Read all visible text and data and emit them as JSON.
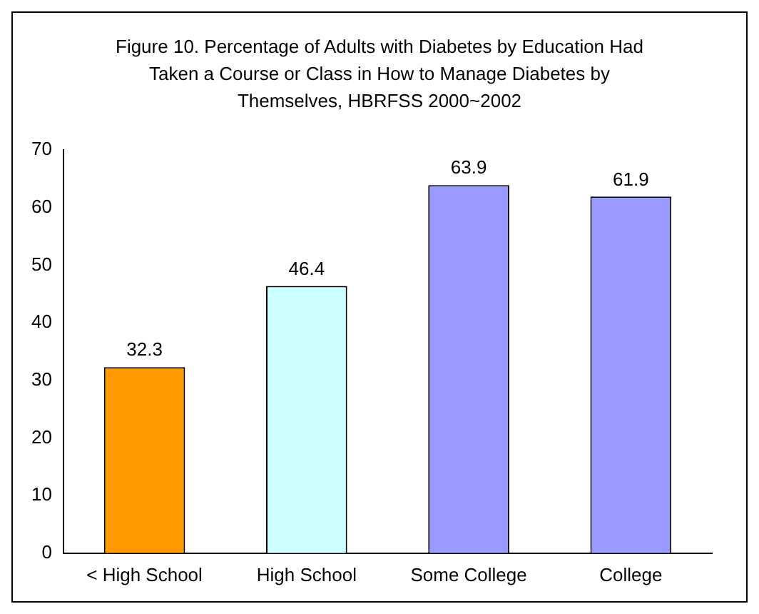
{
  "chart_data": {
    "type": "bar",
    "title": "Figure 10.   Percentage of Adults with Diabetes by Education Had Taken a Course or Class in How to Manage Diabetes by Themselves, HBRFSS 2000~2002",
    "categories": [
      "< High School",
      "High School",
      "Some College",
      "College"
    ],
    "values": [
      32.3,
      46.4,
      63.9,
      61.9
    ],
    "colors": [
      "#ff9900",
      "#ccffff",
      "#9999ff",
      "#9999ff"
    ],
    "ylim": [
      0,
      70
    ],
    "yticks": [
      0,
      10,
      20,
      30,
      40,
      50,
      60,
      70
    ],
    "grid": false,
    "legend": false,
    "data_labels": true
  }
}
